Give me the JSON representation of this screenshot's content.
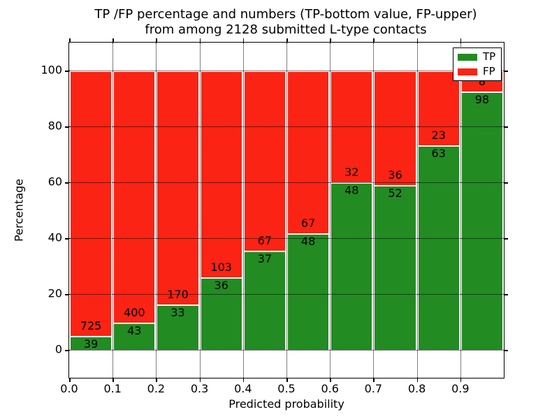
{
  "title": {
    "line1": "TP /FP percentage and numbers (TP-bottom value, FP-upper)",
    "line2": "from among 2128 submitted L-type contacts"
  },
  "axes": {
    "xlabel": "Predicted probability",
    "ylabel": "Percentage",
    "xticks": [
      "0.0",
      "0.1",
      "0.2",
      "0.3",
      "0.4",
      "0.5",
      "0.6",
      "0.7",
      "0.8",
      "0.9"
    ],
    "yticks": [
      "0",
      "20",
      "40",
      "60",
      "80",
      "100"
    ]
  },
  "legend": {
    "items": [
      {
        "label": "TP",
        "color": "#228b22"
      },
      {
        "label": "FP",
        "color": "#fa2314"
      }
    ],
    "position": "upper right"
  },
  "chart_data": {
    "type": "bar",
    "stacked": true,
    "title": "TP /FP percentage and numbers (TP-bottom value, FP-upper) from among 2128 submitted L-type contacts",
    "xlabel": "Predicted probability",
    "ylabel": "Percentage",
    "categories": [
      "0.0-0.1",
      "0.1-0.2",
      "0.2-0.3",
      "0.3-0.4",
      "0.4-0.5",
      "0.5-0.6",
      "0.6-0.7",
      "0.7-0.8",
      "0.8-0.9",
      "0.9-1.0"
    ],
    "series": [
      {
        "name": "TP",
        "counts": [
          39,
          43,
          33,
          36,
          37,
          48,
          48,
          52,
          63,
          98
        ]
      },
      {
        "name": "FP",
        "counts": [
          725,
          400,
          170,
          103,
          67,
          67,
          32,
          36,
          23,
          8
        ]
      }
    ],
    "note": "bars show TP/FP percentage shares summing to 100; count labels drawn at the TP/FP boundary (TP below, FP above)",
    "total_contacts": 2128,
    "xlim": [
      0.0,
      1.0
    ],
    "ylim": [
      -10,
      110
    ],
    "grid": true,
    "legend_position": "upper right"
  },
  "colors": {
    "tp": "#228b22",
    "fp": "#fa2314",
    "bar_edge": "#ffffff",
    "grid": "#000000",
    "background": "#ffffff",
    "text": "#000000"
  }
}
